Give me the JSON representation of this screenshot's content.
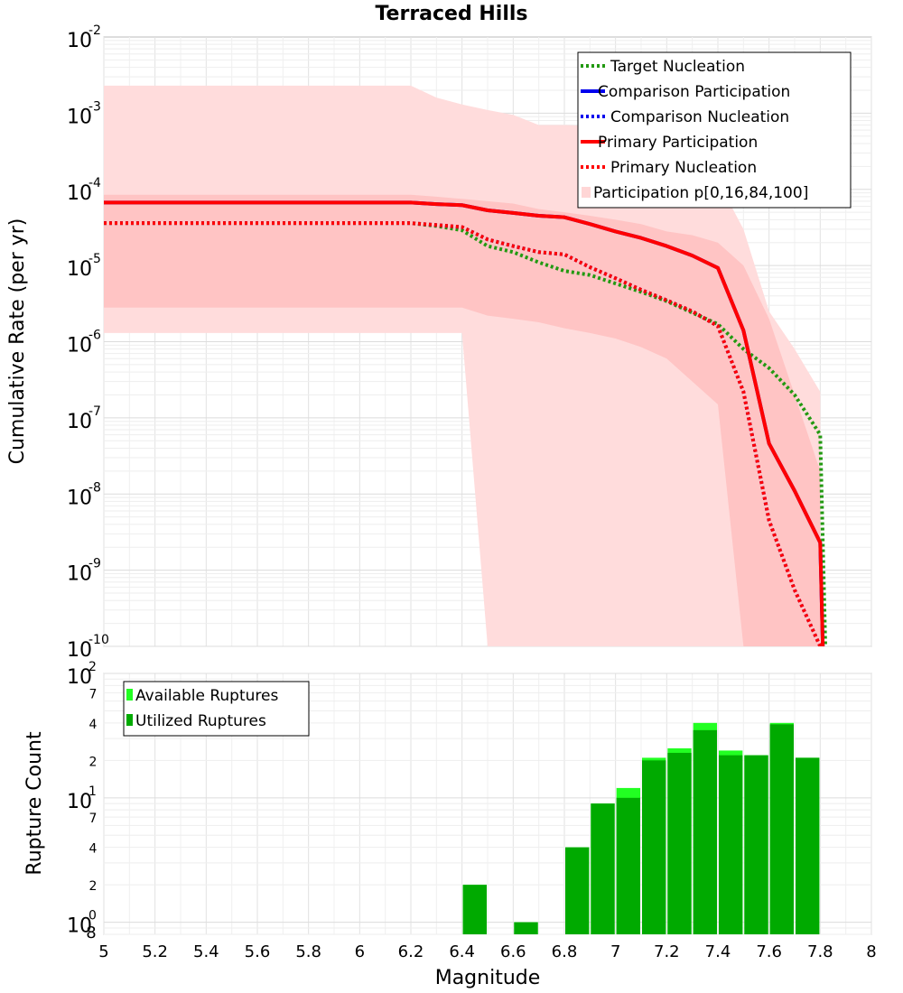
{
  "chart_data": [
    {
      "type": "line",
      "title": "Terraced Hills",
      "xlabel": "Magnitude",
      "ylabel": "Cumulative Rate (per yr)",
      "yscale": "log",
      "xlim": [
        5,
        8
      ],
      "ylim": [
        1e-10,
        0.01
      ],
      "y_tick_labels": [
        {
          "exp": -10,
          "base": "10",
          "sup": "-10"
        },
        {
          "exp": -9,
          "base": "10",
          "sup": "-9"
        },
        {
          "exp": -8,
          "base": "10",
          "sup": "-8"
        },
        {
          "exp": -7,
          "base": "10",
          "sup": "-7"
        },
        {
          "exp": -6,
          "base": "10",
          "sup": "-6"
        },
        {
          "exp": -5,
          "base": "10",
          "sup": "-5"
        },
        {
          "exp": -4,
          "base": "10",
          "sup": "-4"
        },
        {
          "exp": -3,
          "base": "10",
          "sup": "-3"
        },
        {
          "exp": -2,
          "base": "10",
          "sup": "-2"
        }
      ],
      "legend": [
        {
          "label": "Target Nucleation",
          "color": "#229911",
          "style": "dotted"
        },
        {
          "label": "Comparison Participation",
          "color": "#0000ee",
          "style": "solid"
        },
        {
          "label": "Comparison Nucleation",
          "color": "#0000ee",
          "style": "dotted"
        },
        {
          "label": "Primary Participation",
          "color": "#ff0000",
          "style": "solid"
        },
        {
          "label": "Primary Nucleation",
          "color": "#ff0000",
          "style": "dotted"
        },
        {
          "label": "Participation p[0,16,84,100]",
          "color": "#ffd6d6",
          "style": "box"
        }
      ],
      "bands": [
        {
          "name": "p0-p100",
          "color": "#ffdcdc",
          "x": [
            5.0,
            6.2,
            6.3,
            6.4,
            6.5,
            6.6,
            6.7,
            6.8,
            6.9,
            7.0,
            7.1,
            7.2,
            7.3,
            7.4,
            7.5,
            7.6,
            7.7,
            7.8
          ],
          "upper": [
            0.0023,
            0.0023,
            0.0016,
            0.0013,
            0.0011,
            0.00095,
            0.0007,
            0.0007,
            0.00068,
            0.0006,
            0.0005,
            0.0004,
            0.00027,
            0.00013,
            3e-05,
            2.5e-06,
            8e-07,
            2.2e-07
          ],
          "lower": [
            1.3e-06,
            1.3e-06,
            1.3e-06,
            1.3e-06,
            1e-10,
            1e-10,
            1e-10,
            1e-10,
            1e-10,
            1e-10,
            1e-10,
            1e-10,
            1e-10,
            1e-10,
            1e-10,
            1e-10,
            1e-10,
            1e-10
          ]
        },
        {
          "name": "p16-p84",
          "color": "#ffc4c4",
          "x": [
            5.0,
            6.2,
            6.3,
            6.4,
            6.5,
            6.6,
            6.7,
            6.8,
            6.9,
            7.0,
            7.1,
            7.2,
            7.3,
            7.4,
            7.5,
            7.6,
            7.7,
            7.8
          ],
          "upper": [
            8.5e-05,
            8.5e-05,
            8e-05,
            7.5e-05,
            7e-05,
            6.5e-05,
            5.5e-05,
            5e-05,
            4.5e-05,
            4e-05,
            3.5e-05,
            2.8e-05,
            2.5e-05,
            2e-05,
            1e-05,
            2e-06,
            2e-07,
            2e-08
          ],
          "lower": [
            2.8e-06,
            2.8e-06,
            2.8e-06,
            2.8e-06,
            2.2e-06,
            2e-06,
            1.8e-06,
            1.5e-06,
            1.3e-06,
            1.1e-06,
            8.5e-07,
            6e-07,
            3e-07,
            1.5e-07,
            1e-10,
            1e-10,
            1e-10,
            1e-10
          ]
        }
      ],
      "series": [
        {
          "name": "Target Nucleation",
          "color": "#229911",
          "style": "dotted",
          "width": 4,
          "x": [
            5.0,
            6.2,
            6.3,
            6.4,
            6.5,
            6.6,
            6.7,
            6.8,
            6.9,
            7.0,
            7.1,
            7.2,
            7.3,
            7.4,
            7.5,
            7.6,
            7.7,
            7.8,
            7.82
          ],
          "y": [
            3.6e-05,
            3.6e-05,
            3.3e-05,
            2.9e-05,
            1.8e-05,
            1.5e-05,
            1.1e-05,
            8.5e-06,
            7.5e-06,
            5.8e-06,
            4.5e-06,
            3.4e-06,
            2.4e-06,
            1.7e-06,
            8e-07,
            4.5e-07,
            2e-07,
            6e-08,
            1e-10
          ]
        },
        {
          "name": "Comparison Participation",
          "color": "#0000ee",
          "style": "solid",
          "width": 4,
          "x": [
            5.0,
            6.2,
            6.3,
            6.4,
            6.5,
            6.6,
            6.7,
            6.8,
            6.9,
            7.0,
            7.1,
            7.2,
            7.3,
            7.4,
            7.5,
            7.6,
            7.7,
            7.8,
            7.81
          ],
          "y": [
            6.7e-05,
            6.7e-05,
            6.4e-05,
            6.2e-05,
            5.3e-05,
            4.9e-05,
            4.5e-05,
            4.3e-05,
            3.5e-05,
            2.8e-05,
            2.3e-05,
            1.8e-05,
            1.35e-05,
            9.3e-06,
            1.4e-06,
            4.6e-08,
            1.1e-08,
            2.3e-09,
            1e-10
          ]
        },
        {
          "name": "Comparison Nucleation",
          "color": "#0000ee",
          "style": "dotted",
          "width": 4,
          "x": [
            5.0,
            6.2,
            6.3,
            6.4,
            6.5,
            6.6,
            6.7,
            6.8,
            6.9,
            7.0,
            7.1,
            7.2,
            7.3,
            7.4,
            7.5,
            7.6,
            7.7,
            7.8
          ],
          "y": [
            3.6e-05,
            3.6e-05,
            3.4e-05,
            3.2e-05,
            2.2e-05,
            1.8e-05,
            1.5e-05,
            1.4e-05,
            9.5e-06,
            6.8e-06,
            4.8e-06,
            3.5e-06,
            2.5e-06,
            1.6e-06,
            2.2e-07,
            4.5e-09,
            5.5e-10,
            1e-10
          ]
        },
        {
          "name": "Primary Participation",
          "color": "#ff0000",
          "style": "solid",
          "width": 4,
          "x": [
            5.0,
            6.2,
            6.3,
            6.4,
            6.5,
            6.6,
            6.7,
            6.8,
            6.9,
            7.0,
            7.1,
            7.2,
            7.3,
            7.4,
            7.5,
            7.6,
            7.7,
            7.8,
            7.81
          ],
          "y": [
            6.7e-05,
            6.7e-05,
            6.4e-05,
            6.2e-05,
            5.3e-05,
            4.9e-05,
            4.5e-05,
            4.3e-05,
            3.5e-05,
            2.8e-05,
            2.3e-05,
            1.8e-05,
            1.35e-05,
            9.3e-06,
            1.4e-06,
            4.6e-08,
            1.1e-08,
            2.3e-09,
            1e-10
          ]
        },
        {
          "name": "Primary Nucleation",
          "color": "#ff0000",
          "style": "dotted",
          "width": 4,
          "x": [
            5.0,
            6.2,
            6.3,
            6.4,
            6.5,
            6.6,
            6.7,
            6.8,
            6.9,
            7.0,
            7.1,
            7.2,
            7.3,
            7.4,
            7.5,
            7.6,
            7.7,
            7.8
          ],
          "y": [
            3.6e-05,
            3.6e-05,
            3.4e-05,
            3.2e-05,
            2.2e-05,
            1.8e-05,
            1.5e-05,
            1.4e-05,
            9.5e-06,
            6.8e-06,
            4.8e-06,
            3.5e-06,
            2.5e-06,
            1.6e-06,
            2.2e-07,
            4.5e-09,
            5.5e-10,
            1e-10
          ]
        }
      ]
    },
    {
      "type": "bar",
      "ylabel": "Rupture Count",
      "xlabel": "Magnitude",
      "yscale": "log",
      "xlim": [
        5,
        8
      ],
      "ylim": [
        0.8,
        100
      ],
      "x_ticks": [
        5,
        5.2,
        5.4,
        5.6,
        5.8,
        6,
        6.2,
        6.4,
        6.6,
        6.8,
        7,
        7.2,
        7.4,
        7.6,
        7.8,
        8
      ],
      "x_tick_labels": [
        "5",
        "5.2",
        "5.4",
        "5.6",
        "5.8",
        "6",
        "6.2",
        "6.4",
        "6.6",
        "6.8",
        "7",
        "7.2",
        "7.4",
        "7.6",
        "7.8",
        "8"
      ],
      "y_major_labels": [
        {
          "value": 1,
          "base": "10",
          "sup": "0"
        },
        {
          "value": 10,
          "base": "10",
          "sup": "1"
        },
        {
          "value": 100,
          "base": "10",
          "sup": "2"
        }
      ],
      "y_minor_labels": [
        {
          "value": 0.8,
          "label": "8"
        },
        {
          "value": 2,
          "label": "2"
        },
        {
          "value": 4,
          "label": "4"
        },
        {
          "value": 7,
          "label": "7"
        },
        {
          "value": 20,
          "label": "2"
        },
        {
          "value": 40,
          "label": "4"
        },
        {
          "value": 70,
          "label": "7"
        }
      ],
      "legend": [
        {
          "label": "Available Ruptures",
          "color": "#22ff22"
        },
        {
          "label": "Utilized Ruptures",
          "color": "#00aa00"
        }
      ],
      "bin_width": 0.1,
      "series": [
        {
          "name": "Available Ruptures",
          "color": "#22ff22",
          "x": [
            6.45,
            6.65,
            6.85,
            6.95,
            7.05,
            7.15,
            7.25,
            7.35,
            7.45,
            7.55,
            7.65,
            7.75
          ],
          "values": [
            2,
            1,
            4,
            9,
            12,
            21,
            25,
            40,
            24,
            22,
            40,
            21
          ]
        },
        {
          "name": "Utilized Ruptures",
          "color": "#00aa00",
          "x": [
            6.45,
            6.65,
            6.85,
            6.95,
            7.05,
            7.15,
            7.25,
            7.35,
            7.45,
            7.55,
            7.65,
            7.75
          ],
          "values": [
            2,
            1,
            4,
            9,
            10,
            20,
            23,
            35,
            22,
            22,
            39,
            21
          ]
        }
      ]
    }
  ]
}
